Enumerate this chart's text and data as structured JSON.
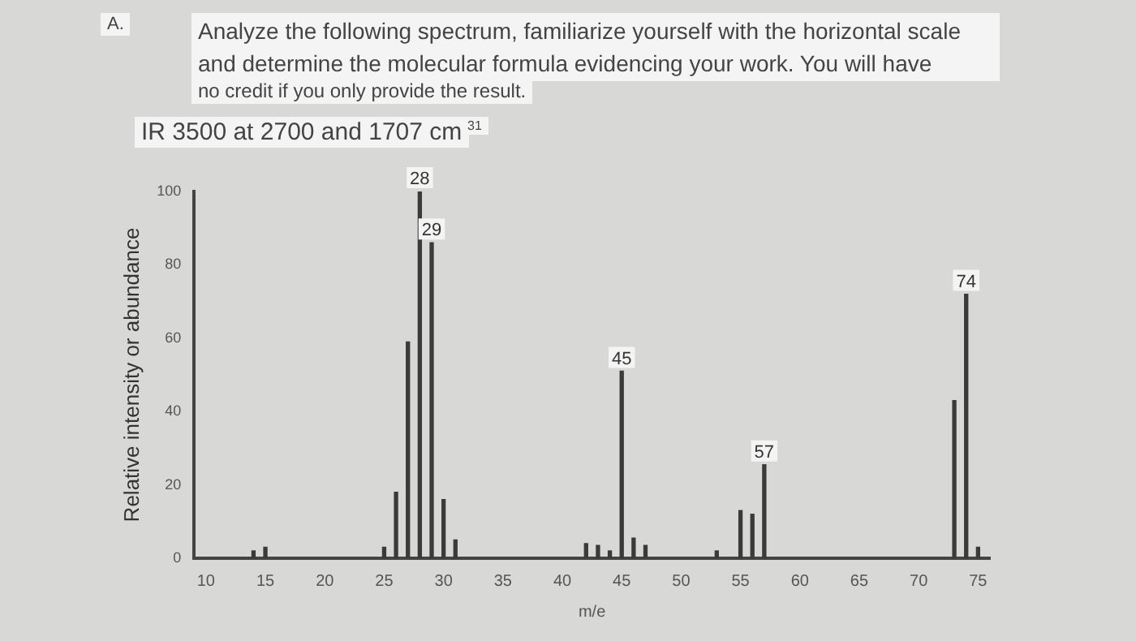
{
  "chart_data": {
    "type": "bar",
    "title": "Analyze the following spectrum, familiarize yourself with the horizontal scale and determine the molecular formula evidencing your work. You will have",
    "subtitle": "no credit if you only provide the result.",
    "annotations": [
      "A.",
      "IR 3500 at 2700 and 1707 cm",
      "31",
      {
        "text": "28",
        "x": 28,
        "y": 100
      },
      {
        "text": "29",
        "x": 29,
        "y": 86
      },
      {
        "text": "45",
        "x": 45,
        "y": 51
      },
      {
        "text": "57",
        "x": 57,
        "y": 25.5
      },
      {
        "text": "74",
        "x": 74,
        "y": 72
      }
    ],
    "xlabel": "m/e",
    "ylabel": "Relative intensity or abundance",
    "x": [
      14,
      15,
      25,
      26,
      27,
      28,
      29,
      30,
      31,
      42,
      43,
      44,
      45,
      46,
      47,
      53,
      55,
      56,
      57,
      73,
      74,
      75
    ],
    "values": [
      2,
      3,
      3,
      18,
      59,
      100,
      86,
      16,
      5,
      4,
      3.5,
      2,
      51,
      5.5,
      3.5,
      2,
      13,
      12,
      25.5,
      43,
      72,
      3
    ],
    "color": "#3a3a3a",
    "xlim": [
      9,
      76
    ],
    "xticks": [
      10,
      15,
      20,
      25,
      30,
      35,
      40,
      45,
      50,
      55,
      60,
      65,
      70,
      75
    ],
    "ylim": [
      0,
      100
    ],
    "yticks": [
      0,
      20,
      40,
      60,
      80,
      100
    ],
    "grid": false,
    "legend": false
  }
}
